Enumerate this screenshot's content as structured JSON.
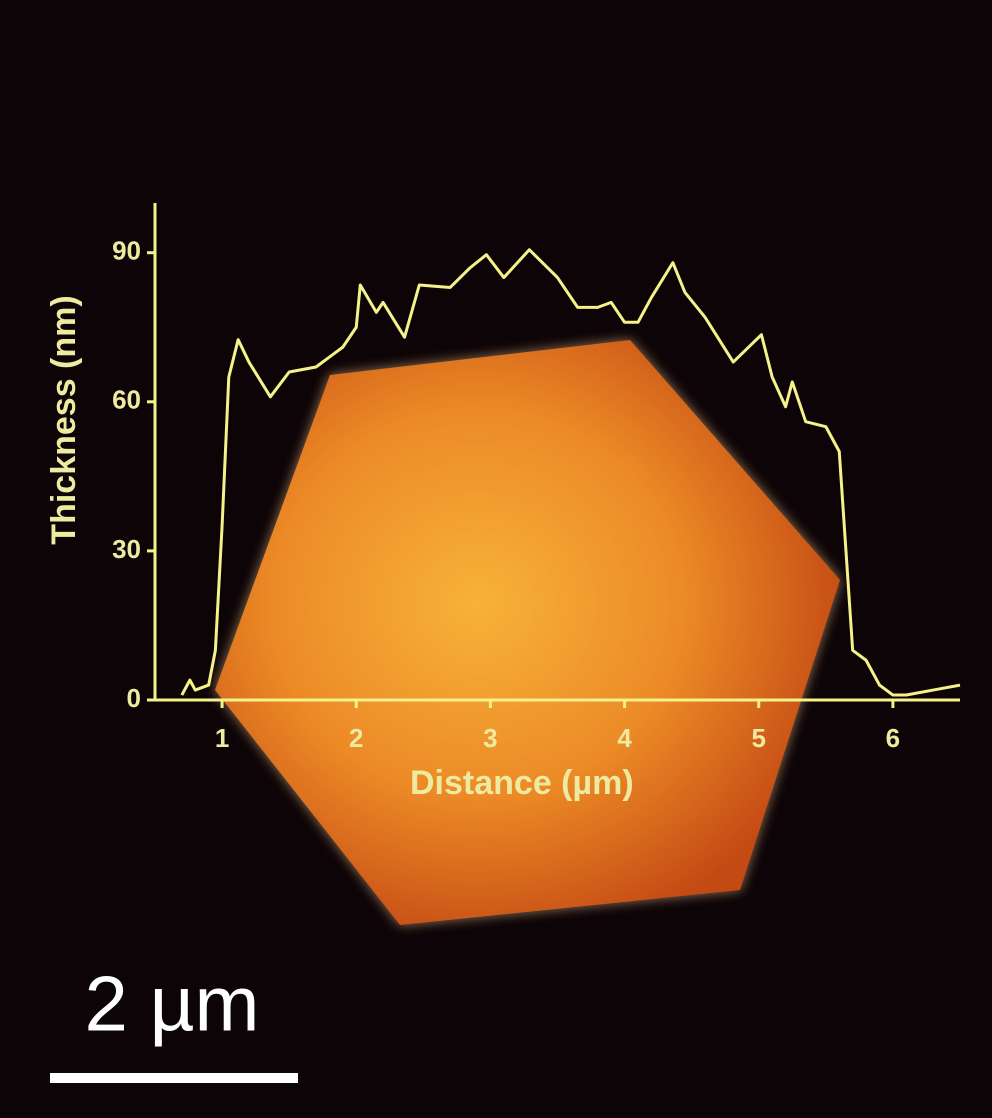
{
  "chart_data": {
    "type": "line",
    "x_label": "Distance (µm)",
    "y_label": "Thickness (nm)",
    "annotation": "2 µm",
    "xlim": [
      0.5,
      6.5
    ],
    "ylim": [
      0,
      100
    ],
    "xticks": [
      1,
      2,
      3,
      4,
      5,
      6
    ],
    "yticks": [
      0,
      30,
      60,
      90
    ],
    "series": [
      {
        "color": "#f5f28a",
        "x": [
          0.7,
          0.76,
          0.8,
          0.9,
          0.95,
          1.0,
          1.05,
          1.12,
          1.2,
          1.36,
          1.5,
          1.7,
          1.8,
          1.9,
          2.0,
          2.03,
          2.15,
          2.2,
          2.36,
          2.47,
          2.7,
          2.85,
          2.97,
          3.1,
          3.29,
          3.5,
          3.65,
          3.8,
          3.9,
          4.0,
          4.1,
          4.2,
          4.36,
          4.45,
          4.6,
          4.81,
          5.02,
          5.1,
          5.2,
          5.25,
          5.35,
          5.5,
          5.6,
          5.65,
          5.7,
          5.8,
          5.9,
          6.0,
          6.1,
          6.3,
          6.5
        ],
        "values": [
          1,
          4,
          2,
          3,
          10,
          35,
          65,
          72.5,
          68,
          61,
          66,
          67,
          69,
          71,
          75,
          83.5,
          78,
          80,
          73,
          83.5,
          83,
          87,
          89.6,
          85,
          90.6,
          85,
          79,
          79,
          80,
          76,
          76,
          81,
          88,
          82,
          77,
          68,
          73.5,
          65,
          59,
          64,
          56,
          55,
          50,
          30,
          10,
          8,
          3,
          1,
          1,
          2,
          3
        ]
      }
    ]
  }
}
